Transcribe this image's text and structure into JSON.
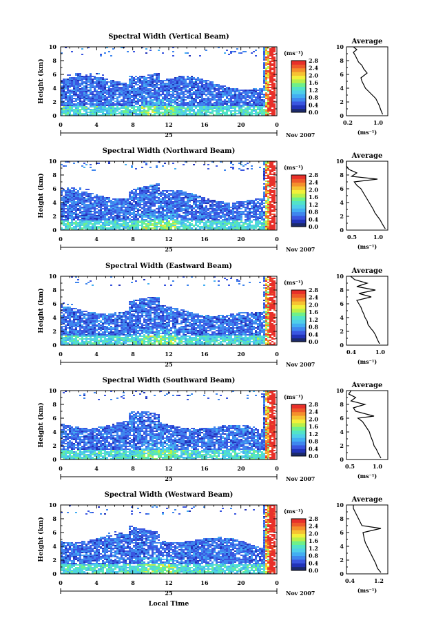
{
  "colors": {
    "colormap": [
      "#1c2a6b",
      "#2233b8",
      "#3a56e0",
      "#3f86ee",
      "#43aef2",
      "#4fcfe8",
      "#52e3c8",
      "#6ef08a",
      "#b8f04a",
      "#f2f03a",
      "#f6c232",
      "#f4902c",
      "#ee5a2a",
      "#e8302a"
    ]
  },
  "footer": {
    "xlabel": "Local Time"
  },
  "panels": [
    {
      "title": "Spectral Width (Vertical Beam)",
      "ylabel": "Height (km)",
      "yticks": [
        "0",
        "2",
        "4",
        "6",
        "8",
        "10"
      ],
      "xticks": [
        "0",
        "4",
        "8",
        "12",
        "16",
        "20",
        "0"
      ],
      "date_label": "25",
      "month_label": "Nov 2007",
      "colorbar": {
        "unit": "(ms⁻¹)",
        "ticks": [
          "2.8",
          "2.4",
          "2.0",
          "1.6",
          "1.2",
          "0.8",
          "0.4",
          "0.0"
        ]
      },
      "avg": {
        "title": "Average",
        "xticks": [
          "0.2",
          "1.0"
        ],
        "xlabel": "(ms⁻¹)",
        "yticks": [
          "0",
          "2",
          "4",
          "6",
          "8",
          "10"
        ]
      }
    },
    {
      "title": "Spectral Width (Northward Beam)",
      "ylabel": "Height (km)",
      "yticks": [
        "0",
        "2",
        "4",
        "6",
        "8",
        "10"
      ],
      "xticks": [
        "0",
        "4",
        "8",
        "12",
        "16",
        "20",
        "0"
      ],
      "date_label": "25",
      "month_label": "Nov 2007",
      "colorbar": {
        "unit": "(ms⁻¹)",
        "ticks": [
          "2.8",
          "2.4",
          "2.0",
          "1.6",
          "1.2",
          "0.8",
          "0.4",
          "0.0"
        ]
      },
      "avg": {
        "title": "Average",
        "xticks": [
          "0.5",
          "1.0"
        ],
        "xlabel": "(ms⁻¹)",
        "yticks": [
          "0",
          "2",
          "4",
          "6",
          "8",
          "10"
        ]
      }
    },
    {
      "title": "Spectral Width (Eastward Beam)",
      "ylabel": "Height (km)",
      "yticks": [
        "0",
        "2",
        "4",
        "6",
        "8",
        "10"
      ],
      "xticks": [
        "0",
        "4",
        "8",
        "12",
        "16",
        "20",
        "0"
      ],
      "date_label": "25",
      "month_label": "Nov 2007",
      "colorbar": {
        "unit": "(ms⁻¹)",
        "ticks": [
          "2.8",
          "2.4",
          "2.0",
          "1.6",
          "1.2",
          "0.8",
          "0.4",
          "0.0"
        ]
      },
      "avg": {
        "title": "Average",
        "xticks": [
          "0.4",
          "1.0"
        ],
        "xlabel": "(ms⁻¹)",
        "yticks": [
          "0",
          "2",
          "4",
          "6",
          "8",
          "10"
        ]
      }
    },
    {
      "title": "Spectral Width (Southward Beam)",
      "ylabel": "Height (km)",
      "yticks": [
        "0",
        "2",
        "4",
        "6",
        "8",
        "10"
      ],
      "xticks": [
        "0",
        "4",
        "8",
        "12",
        "16",
        "20",
        "0"
      ],
      "date_label": "25",
      "month_label": "Nov 2007",
      "colorbar": {
        "unit": "(ms⁻¹)",
        "ticks": [
          "2.8",
          "2.4",
          "2.0",
          "1.6",
          "1.2",
          "0.8",
          "0.4",
          "0.0"
        ]
      },
      "avg": {
        "title": "Average",
        "xticks": [
          "0.5",
          "1.0"
        ],
        "xlabel": "(ms⁻¹)",
        "yticks": [
          "0",
          "2",
          "4",
          "6",
          "8",
          "10"
        ]
      }
    },
    {
      "title": "Spectral Width (Westward Beam)",
      "ylabel": "Height (km)",
      "yticks": [
        "0",
        "2",
        "4",
        "6",
        "8",
        "10"
      ],
      "xticks": [
        "0",
        "4",
        "8",
        "12",
        "16",
        "20",
        "0"
      ],
      "date_label": "25",
      "month_label": "Nov 2007",
      "colorbar": {
        "unit": "(ms⁻¹)",
        "ticks": [
          "2.8",
          "2.4",
          "2.0",
          "1.6",
          "1.2",
          "0.8",
          "0.4",
          "0.0"
        ]
      },
      "avg": {
        "title": "Average",
        "xticks": [
          "0.4",
          "1.2"
        ],
        "xlabel": "(ms⁻¹)",
        "yticks": [
          "0",
          "2",
          "4",
          "6",
          "8",
          "10"
        ]
      }
    }
  ],
  "chart_data": [
    {
      "type": "heatmap",
      "title": "Spectral Width (Vertical Beam)",
      "xlabel": "",
      "ylabel": "Height (km)",
      "xlim": [
        0,
        24
      ],
      "ylim": [
        0,
        10
      ],
      "zlim": [
        0.0,
        2.8
      ],
      "x_tick_labels": [
        "0",
        "4",
        "8",
        "12",
        "16",
        "20",
        "0"
      ],
      "colorbar_ticks": [
        0.0,
        0.4,
        0.8,
        1.2,
        1.6,
        2.0,
        2.4,
        2.8
      ]
    },
    {
      "type": "line",
      "title": "Average",
      "xlabel": "(ms⁻¹)",
      "xlim": [
        0.0,
        1.2
      ],
      "ylim": [
        0,
        10
      ],
      "series": [
        {
          "x": [
            1.05,
            1.0,
            0.95,
            0.9,
            0.85,
            0.75,
            0.65,
            0.55,
            0.5,
            0.45,
            0.42,
            0.6,
            0.5,
            0.45,
            0.35,
            0.3,
            0.25,
            0.2,
            0.3,
            0.2
          ],
          "y": [
            0.2,
            0.8,
            1.5,
            2.0,
            2.5,
            3.0,
            3.5,
            4.0,
            4.5,
            5.0,
            5.5,
            6.2,
            6.8,
            7.3,
            7.8,
            8.3,
            8.8,
            9.2,
            9.6,
            10.0
          ]
        }
      ]
    },
    {
      "type": "heatmap",
      "title": "Spectral Width (Northward Beam)",
      "xlabel": "",
      "ylabel": "Height (km)",
      "xlim": [
        0,
        24
      ],
      "ylim": [
        0,
        10
      ],
      "zlim": [
        0.0,
        2.8
      ],
      "x_tick_labels": [
        "0",
        "4",
        "8",
        "12",
        "16",
        "20",
        "0"
      ],
      "colorbar_ticks": [
        0.0,
        0.4,
        0.8,
        1.2,
        1.6,
        2.0,
        2.4,
        2.8
      ]
    },
    {
      "type": "line",
      "title": "Average",
      "xlabel": "(ms⁻¹)",
      "xlim": [
        0.3,
        1.1
      ],
      "ylim": [
        0,
        10
      ],
      "series": [
        {
          "x": [
            1.05,
            1.0,
            0.95,
            0.9,
            0.85,
            0.82,
            0.78,
            0.74,
            0.7,
            0.66,
            0.62,
            0.58,
            0.5,
            0.45,
            0.9,
            0.4,
            0.5,
            0.35,
            0.3,
            0.3
          ],
          "y": [
            0.2,
            0.8,
            1.5,
            2.0,
            2.5,
            3.0,
            3.5,
            4.0,
            4.5,
            5.0,
            5.5,
            6.0,
            6.5,
            7.0,
            7.4,
            7.8,
            8.3,
            8.8,
            9.3,
            10.0
          ]
        }
      ]
    },
    {
      "type": "heatmap",
      "title": "Spectral Width (Eastward Beam)",
      "xlabel": "",
      "ylabel": "Height (km)",
      "xlim": [
        0,
        24
      ],
      "ylim": [
        0,
        10
      ],
      "zlim": [
        0.0,
        2.8
      ],
      "x_tick_labels": [
        "0",
        "4",
        "8",
        "12",
        "16",
        "20",
        "0"
      ],
      "colorbar_ticks": [
        0.0,
        0.4,
        0.8,
        1.2,
        1.6,
        2.0,
        2.4,
        2.8
      ]
    },
    {
      "type": "line",
      "title": "Average",
      "xlabel": "(ms⁻¹)",
      "xlim": [
        0.2,
        1.2
      ],
      "ylim": [
        0,
        10
      ],
      "series": [
        {
          "x": [
            1.0,
            0.95,
            0.9,
            0.85,
            0.78,
            0.72,
            0.7,
            0.65,
            0.62,
            0.58,
            0.55,
            0.5,
            0.45,
            0.8,
            0.5,
            0.9,
            0.45,
            0.7,
            0.4,
            0.3
          ],
          "y": [
            0.2,
            0.8,
            1.5,
            2.0,
            2.5,
            3.0,
            3.5,
            4.0,
            4.5,
            5.0,
            5.5,
            6.0,
            6.5,
            7.0,
            7.5,
            8.0,
            8.5,
            9.0,
            9.5,
            10.0
          ]
        }
      ]
    },
    {
      "type": "heatmap",
      "title": "Spectral Width (Southward Beam)",
      "xlabel": "",
      "ylabel": "Height (km)",
      "xlim": [
        0,
        24
      ],
      "ylim": [
        0,
        10
      ],
      "zlim": [
        0.0,
        2.8
      ],
      "x_tick_labels": [
        "0",
        "4",
        "8",
        "12",
        "16",
        "20",
        "0"
      ],
      "colorbar_ticks": [
        0.0,
        0.4,
        0.8,
        1.2,
        1.6,
        2.0,
        2.4,
        2.8
      ]
    },
    {
      "type": "line",
      "title": "Average",
      "xlabel": "(ms⁻¹)",
      "xlim": [
        0.3,
        1.2
      ],
      "ylim": [
        0,
        10
      ],
      "series": [
        {
          "x": [
            1.05,
            1.0,
            0.95,
            0.9,
            0.88,
            0.85,
            0.82,
            0.8,
            0.75,
            0.7,
            0.65,
            0.55,
            0.9,
            0.5,
            0.45,
            0.7,
            0.4,
            0.5,
            0.35,
            0.4
          ],
          "y": [
            0.2,
            0.8,
            1.5,
            2.0,
            2.5,
            3.0,
            3.5,
            4.0,
            4.5,
            5.0,
            5.5,
            6.0,
            6.3,
            7.0,
            7.5,
            8.0,
            8.5,
            9.0,
            9.5,
            10.0
          ]
        }
      ]
    },
    {
      "type": "heatmap",
      "title": "Spectral Width (Westward Beam)",
      "xlabel": "Local Time",
      "ylabel": "Height (km)",
      "xlim": [
        0,
        24
      ],
      "ylim": [
        0,
        10
      ],
      "zlim": [
        0.0,
        2.8
      ],
      "x_tick_labels": [
        "0",
        "4",
        "8",
        "12",
        "16",
        "20",
        "0"
      ],
      "colorbar_ticks": [
        0.0,
        0.4,
        0.8,
        1.2,
        1.6,
        2.0,
        2.4,
        2.8
      ]
    },
    {
      "type": "line",
      "title": "Average",
      "xlabel": "(ms⁻¹)",
      "xlim": [
        0.2,
        1.4
      ],
      "ylim": [
        0,
        10
      ],
      "series": [
        {
          "x": [
            1.2,
            1.1,
            1.05,
            1.0,
            0.95,
            0.9,
            0.85,
            0.8,
            0.75,
            0.72,
            0.7,
            0.68,
            1.2,
            0.65,
            0.6,
            0.55,
            0.5,
            0.45,
            0.4,
            0.4
          ],
          "y": [
            0.2,
            0.8,
            1.5,
            2.0,
            2.5,
            3.0,
            3.5,
            4.0,
            4.5,
            5.0,
            5.5,
            6.0,
            6.6,
            7.0,
            7.5,
            8.0,
            8.5,
            9.0,
            9.5,
            10.0
          ]
        }
      ]
    }
  ]
}
